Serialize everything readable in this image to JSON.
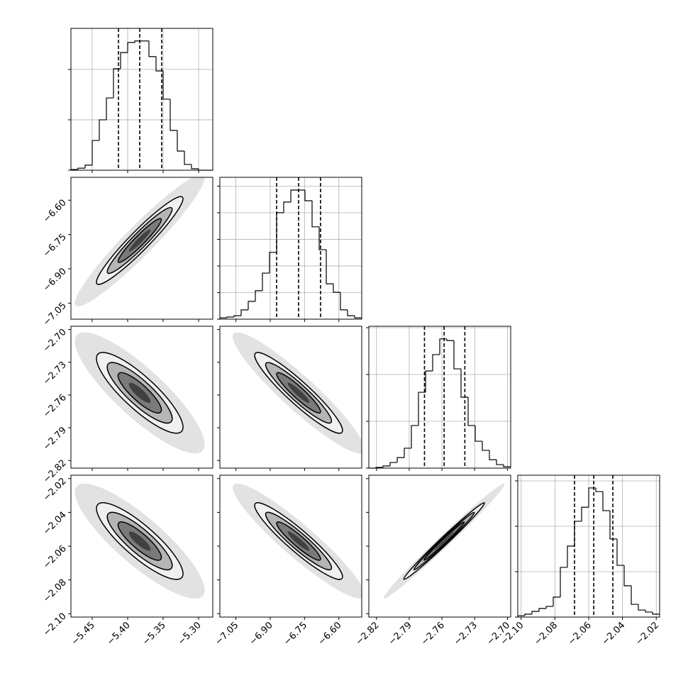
{
  "chart_data": {
    "type": "corner",
    "contour_levels": [
      0.5,
      1,
      1.5,
      2
    ],
    "grid_on_diagonal": true,
    "color": "#000000",
    "correlations": [
      [
        0.95
      ],
      [
        -0.85,
        -0.93
      ],
      [
        -0.85,
        -0.93,
        0.99
      ]
    ],
    "parameters": [
      {
        "range": [
          -5.48,
          -5.28
        ],
        "ticks": [
          {
            "value": -5.45,
            "label": "−5.45"
          },
          {
            "value": -5.4,
            "label": "−5.40"
          },
          {
            "value": -5.35,
            "label": "−5.35"
          },
          {
            "value": -5.3,
            "label": "−5.30"
          }
        ],
        "quantiles": [
          -5.413,
          -5.383,
          -5.352
        ],
        "bins": [
          -5.48,
          -5.47,
          -5.46,
          -5.45,
          -5.44,
          -5.43,
          -5.42,
          -5.41,
          -5.4,
          -5.39,
          -5.38,
          -5.37,
          -5.36,
          -5.35,
          -5.34,
          -5.33,
          -5.32,
          -5.31,
          -5.3,
          -5.29,
          -5.28
        ],
        "counts": [
          3,
          8,
          20,
          118,
          200,
          287,
          403,
          467,
          507,
          513,
          513,
          451,
          394,
          282,
          158,
          76,
          23,
          6,
          0,
          0
        ],
        "count_lim": [
          0,
          563
        ],
        "count_ticks": [
          0,
          200,
          400
        ]
      },
      {
        "range": [
          -7.12,
          -6.5
        ],
        "ticks": [
          {
            "value": -7.05,
            "label": "−7.05"
          },
          {
            "value": -6.9,
            "label": "−6.90"
          },
          {
            "value": -6.75,
            "label": "−6.75"
          },
          {
            "value": -6.6,
            "label": "−6.60"
          }
        ],
        "quantiles": [
          -6.872,
          -6.776,
          -6.68
        ],
        "bins": [
          -7.12,
          -7.089,
          -7.058,
          -7.027,
          -6.996,
          -6.965,
          -6.934,
          -6.903,
          -6.872,
          -6.841,
          -6.81,
          -6.779,
          -6.748,
          -6.717,
          -6.686,
          -6.655,
          -6.624,
          -6.593,
          -6.562,
          -6.531,
          -6.5
        ],
        "counts": [
          5,
          8,
          13,
          35,
          67,
          107,
          173,
          251,
          400,
          440,
          485,
          485,
          445,
          347,
          261,
          133,
          101,
          35,
          13,
          5
        ],
        "count_lim": [
          0,
          533
        ],
        "count_ticks": [
          0,
          100,
          200,
          300,
          400,
          500
        ]
      },
      {
        "range": [
          -2.827,
          -2.697
        ],
        "ticks": [
          {
            "value": -2.82,
            "label": "−2.82"
          },
          {
            "value": -2.79,
            "label": "−2.79"
          },
          {
            "value": -2.76,
            "label": "−2.76"
          },
          {
            "value": -2.73,
            "label": "−2.73"
          },
          {
            "value": -2.7,
            "label": "−2.70"
          }
        ],
        "quantiles": [
          -2.776,
          -2.758,
          -2.739
        ],
        "bins": [
          -2.827,
          -2.8205,
          -2.814,
          -2.8075,
          -2.801,
          -2.7945,
          -2.788,
          -2.7815,
          -2.775,
          -2.7685,
          -2.762,
          -2.7555,
          -2.749,
          -2.7425,
          -2.736,
          -2.7295,
          -2.723,
          -2.7165,
          -2.71,
          -2.7035,
          -2.697
        ],
        "counts": [
          0,
          3,
          9,
          24,
          45,
          85,
          182,
          324,
          415,
          485,
          552,
          545,
          424,
          303,
          182,
          115,
          76,
          36,
          15,
          6
        ],
        "count_lim": [
          0,
          606
        ],
        "count_ticks": [
          0,
          200,
          400,
          600
        ]
      },
      {
        "range": [
          -2.102,
          -2.018
        ],
        "ticks": [
          {
            "value": -2.1,
            "label": "−2.10"
          },
          {
            "value": -2.08,
            "label": "−2.08"
          },
          {
            "value": -2.06,
            "label": "−2.06"
          },
          {
            "value": -2.04,
            "label": "−2.04"
          },
          {
            "value": -2.02,
            "label": "−2.02"
          }
        ],
        "quantiles": [
          -2.0684,
          -2.057,
          -2.0457
        ],
        "bins": [
          -2.102,
          -2.0978,
          -2.0936,
          -2.0894,
          -2.0852,
          -2.081,
          -2.0768,
          -2.0726,
          -2.0684,
          -2.0642,
          -2.06,
          -2.0558,
          -2.0516,
          -2.0474,
          -2.0432,
          -2.039,
          -2.0348,
          -2.0306,
          -2.0264,
          -2.0222,
          -2.018
        ],
        "counts": [
          6,
          13,
          25,
          38,
          47,
          88,
          219,
          313,
          422,
          484,
          569,
          553,
          469,
          344,
          228,
          138,
          56,
          31,
          22,
          13
        ],
        "count_lim": [
          0,
          625
        ],
        "count_ticks": [
          0,
          200,
          400,
          600
        ]
      }
    ]
  }
}
